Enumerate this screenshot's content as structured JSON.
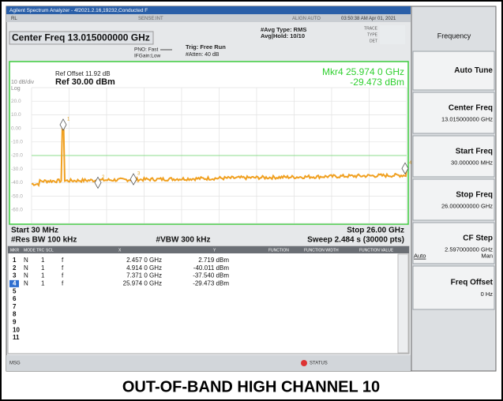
{
  "title_bar": "Agilent Spectrum Analyzer - 4f2021.2.16,19232,Conducted F",
  "status_line": {
    "left": "RL",
    "center": "SENSE:INT",
    "right": "ALIGN AUTO",
    "time": "03:50:38 AM Apr 01, 2021"
  },
  "header": {
    "center_freq": "Center Freq 13.015000000 GHz",
    "pno": "PNO: Fast",
    "ifgain": "IFGain:Low",
    "trig": "Trig: Free Run",
    "atten": "#Atten: 40 dB",
    "avg_type": "#Avg Type: RMS",
    "avg_hold": "Avg|Hold: 10/10",
    "trace": "TRACE",
    "type": "TYPE",
    "det": "DET"
  },
  "graph": {
    "ref_offset": "Ref Offset 11.92 dB",
    "ref": "Ref 30.00 dBm",
    "scale": "10 dB/div",
    "log": "Log",
    "marker_readout": "Mkr4 25.974 0 GHz",
    "marker_value": "-29.473 dBm",
    "y_labels": [
      "20.0",
      "10.0",
      "0.00",
      "-10.0",
      "-20.0",
      "-30.0",
      "-40.0",
      "-50.0",
      "-60.0"
    ]
  },
  "footer": {
    "start": "Start 30 MHz",
    "stop": "Stop 26.00 GHz",
    "rbw": "#Res BW 100 kHz",
    "vbw": "#VBW 300 kHz",
    "sweep": "Sweep  2.484 s (30000 pts)"
  },
  "marker_table": {
    "headers": [
      "MKR",
      "MODE",
      "TRC",
      "SCL",
      "X",
      "Y",
      "FUNCTION",
      "FUNCTION WIDTH",
      "FUNCTION VALUE"
    ],
    "rows": [
      [
        "1",
        "N",
        "1",
        "f",
        "2.457 0 GHz",
        "2.719 dBm"
      ],
      [
        "2",
        "N",
        "1",
        "f",
        "4.914 0 GHz",
        "-40.011 dBm"
      ],
      [
        "3",
        "N",
        "1",
        "f",
        "7.371 0 GHz",
        "-37.540 dBm"
      ],
      [
        "4",
        "N",
        "1",
        "f",
        "25.974 0 GHz",
        "-29.473 dBm"
      ],
      [
        "5"
      ],
      [
        "6"
      ],
      [
        "7"
      ],
      [
        "8"
      ],
      [
        "9"
      ],
      [
        "10"
      ],
      [
        "11"
      ]
    ]
  },
  "softkeys": {
    "menu": "Frequency",
    "keys": [
      {
        "label": "Auto Tune"
      },
      {
        "label": "Center Freq",
        "value": "13.015000000 GHz"
      },
      {
        "label": "Start Freq",
        "value": "30.000000 MHz"
      },
      {
        "label": "Stop Freq",
        "value": "26.000000000 GHz"
      },
      {
        "label": "CF Step",
        "value": "2.597000000 GHz",
        "options": [
          "Auto",
          "Man"
        ]
      },
      {
        "label": "Freq Offset",
        "value": "0 Hz"
      }
    ]
  },
  "status_bar": {
    "msg": "MSG",
    "status": "STATUS"
  },
  "caption": "OUT-OF-BAND HIGH CHANNEL 10"
}
